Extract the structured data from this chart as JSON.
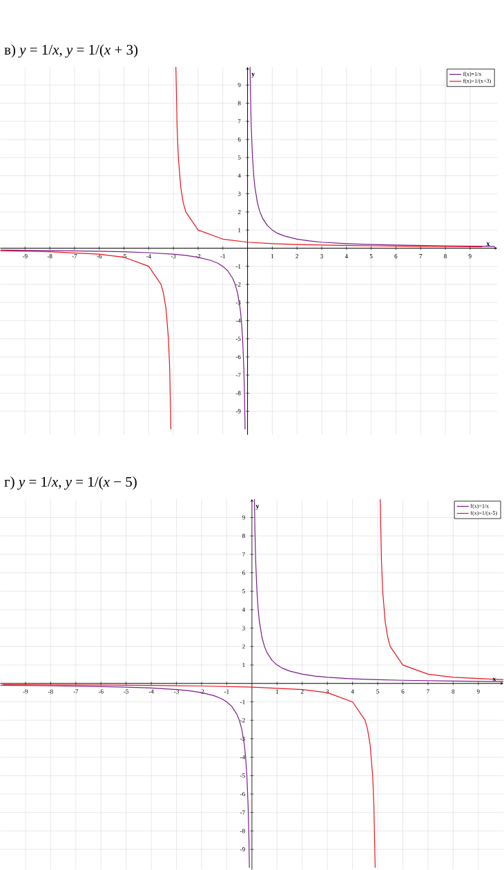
{
  "chart_data": [
    {
      "type": "line",
      "title": "в) *y* = 1/*x*,       *y* = 1/(*x* + 3)",
      "xlabel": "x",
      "ylabel": "y",
      "xlim": [
        -10,
        10.1
      ],
      "ylim": [
        -10.3,
        10
      ],
      "xticks": [
        -9,
        -8,
        -7,
        -6,
        -5,
        -4,
        -3,
        -2,
        -1,
        1,
        2,
        3,
        4,
        5,
        6,
        7,
        8,
        9
      ],
      "yticks": [
        -9,
        -8,
        -7,
        -6,
        -5,
        -4,
        -3,
        -2,
        -1,
        1,
        2,
        3,
        4,
        5,
        6,
        7,
        8,
        9
      ],
      "grid": true,
      "legend": "top right",
      "series": [
        {
          "name": "f(x)=1/x",
          "color": "#7a1a8c",
          "x": [
            -10,
            -8,
            -6,
            -5,
            -4,
            -3,
            -2.5,
            -2,
            -1.5,
            -1.2,
            -1,
            -0.8,
            -0.6,
            -0.5,
            -0.4,
            -0.3,
            -0.25,
            -0.2,
            -0.15,
            -0.12,
            -0.1,
            0,
            0.1,
            0.12,
            0.15,
            0.2,
            0.25,
            0.3,
            0.4,
            0.5,
            0.6,
            0.8,
            1,
            1.2,
            1.5,
            2,
            2.5,
            3,
            4,
            5,
            6,
            8,
            10
          ],
          "values": [
            -0.1,
            -0.13,
            -0.17,
            -0.2,
            -0.25,
            -0.33,
            -0.4,
            -0.5,
            -0.67,
            -0.83,
            -1,
            -1.25,
            -1.67,
            -2,
            -2.5,
            -3.33,
            -4,
            -5,
            -6.67,
            -8.33,
            -10,
            null,
            10,
            8.33,
            6.67,
            5,
            4,
            3.33,
            2.5,
            2,
            1.67,
            1.25,
            1,
            0.83,
            0.67,
            0.5,
            0.4,
            0.33,
            0.25,
            0.2,
            0.17,
            0.13,
            0.1
          ]
        },
        {
          "name": "f(x)=1/(x+3)",
          "color": "#e8121a",
          "x": [
            -10,
            -8,
            -6,
            -5,
            -4,
            -3.5,
            -3.4,
            -3.3,
            -3.2,
            -3.15,
            -3.1,
            -3,
            -2.9,
            -2.85,
            -2.8,
            -2.7,
            -2.6,
            -2.5,
            -2,
            -1,
            0,
            1,
            2,
            3,
            5,
            7,
            9.5
          ],
          "values": [
            -0.14,
            -0.2,
            -0.33,
            -0.5,
            -1,
            -2,
            -2.5,
            -3.33,
            -5,
            -6.67,
            -10,
            null,
            10,
            6.67,
            5,
            3.33,
            2.5,
            2,
            1,
            0.5,
            0.33,
            0.25,
            0.2,
            0.17,
            0.13,
            0.1,
            0.08
          ]
        }
      ]
    },
    {
      "type": "line",
      "title": "г) *y* = 1/*x*,       *y* = 1/(*x* − 5)",
      "xlabel": "x",
      "ylabel": "y",
      "xlim": [
        -10,
        10
      ],
      "ylim": [
        -10.1,
        10
      ],
      "xticks": [
        -9,
        -8,
        -7,
        -6,
        -5,
        -4,
        -3,
        -2,
        -1,
        1,
        2,
        3,
        4,
        5,
        6,
        7,
        8,
        9
      ],
      "yticks": [
        -9,
        -8,
        -7,
        -6,
        -5,
        -4,
        -3,
        -2,
        -1,
        1,
        2,
        3,
        4,
        5,
        6,
        7,
        8,
        9
      ],
      "grid": true,
      "legend": "top right",
      "series": [
        {
          "name": "f(x)=1/x",
          "color": "#7a1a8c",
          "x": [
            -10,
            -8,
            -6,
            -5,
            -4,
            -3,
            -2.5,
            -2,
            -1.5,
            -1.2,
            -1,
            -0.8,
            -0.6,
            -0.5,
            -0.4,
            -0.3,
            -0.25,
            -0.2,
            -0.15,
            -0.12,
            -0.1,
            0,
            0.1,
            0.12,
            0.15,
            0.2,
            0.25,
            0.3,
            0.4,
            0.5,
            0.6,
            0.8,
            1,
            1.2,
            1.5,
            2,
            2.5,
            3,
            4,
            5,
            6,
            8,
            10
          ],
          "values": [
            -0.1,
            -0.13,
            -0.17,
            -0.2,
            -0.25,
            -0.33,
            -0.4,
            -0.5,
            -0.67,
            -0.83,
            -1,
            -1.25,
            -1.67,
            -2,
            -2.5,
            -3.33,
            -4,
            -5,
            -6.67,
            -8.33,
            -10,
            null,
            10,
            8.33,
            6.67,
            5,
            4,
            3.33,
            2.5,
            2,
            1.67,
            1.25,
            1,
            0.83,
            0.67,
            0.5,
            0.4,
            0.33,
            0.25,
            0.2,
            0.17,
            0.13,
            0.1
          ]
        },
        {
          "name": "f(x)=1/(x-5)",
          "color": "#e8121a",
          "x": [
            -9.9,
            -8,
            -6,
            -4,
            -2,
            0,
            2,
            3,
            4,
            4.5,
            4.6,
            4.7,
            4.8,
            4.85,
            4.9,
            5,
            5.1,
            5.15,
            5.2,
            5.3,
            5.4,
            5.5,
            6,
            7,
            8,
            10
          ],
          "values": [
            -0.07,
            -0.08,
            -0.09,
            -0.11,
            -0.14,
            -0.2,
            -0.33,
            -0.5,
            -1,
            -2,
            -2.5,
            -3.33,
            -5,
            -6.67,
            -10,
            null,
            10,
            6.67,
            5,
            3.33,
            2.5,
            2,
            1,
            0.5,
            0.33,
            0.2
          ]
        }
      ]
    }
  ]
}
